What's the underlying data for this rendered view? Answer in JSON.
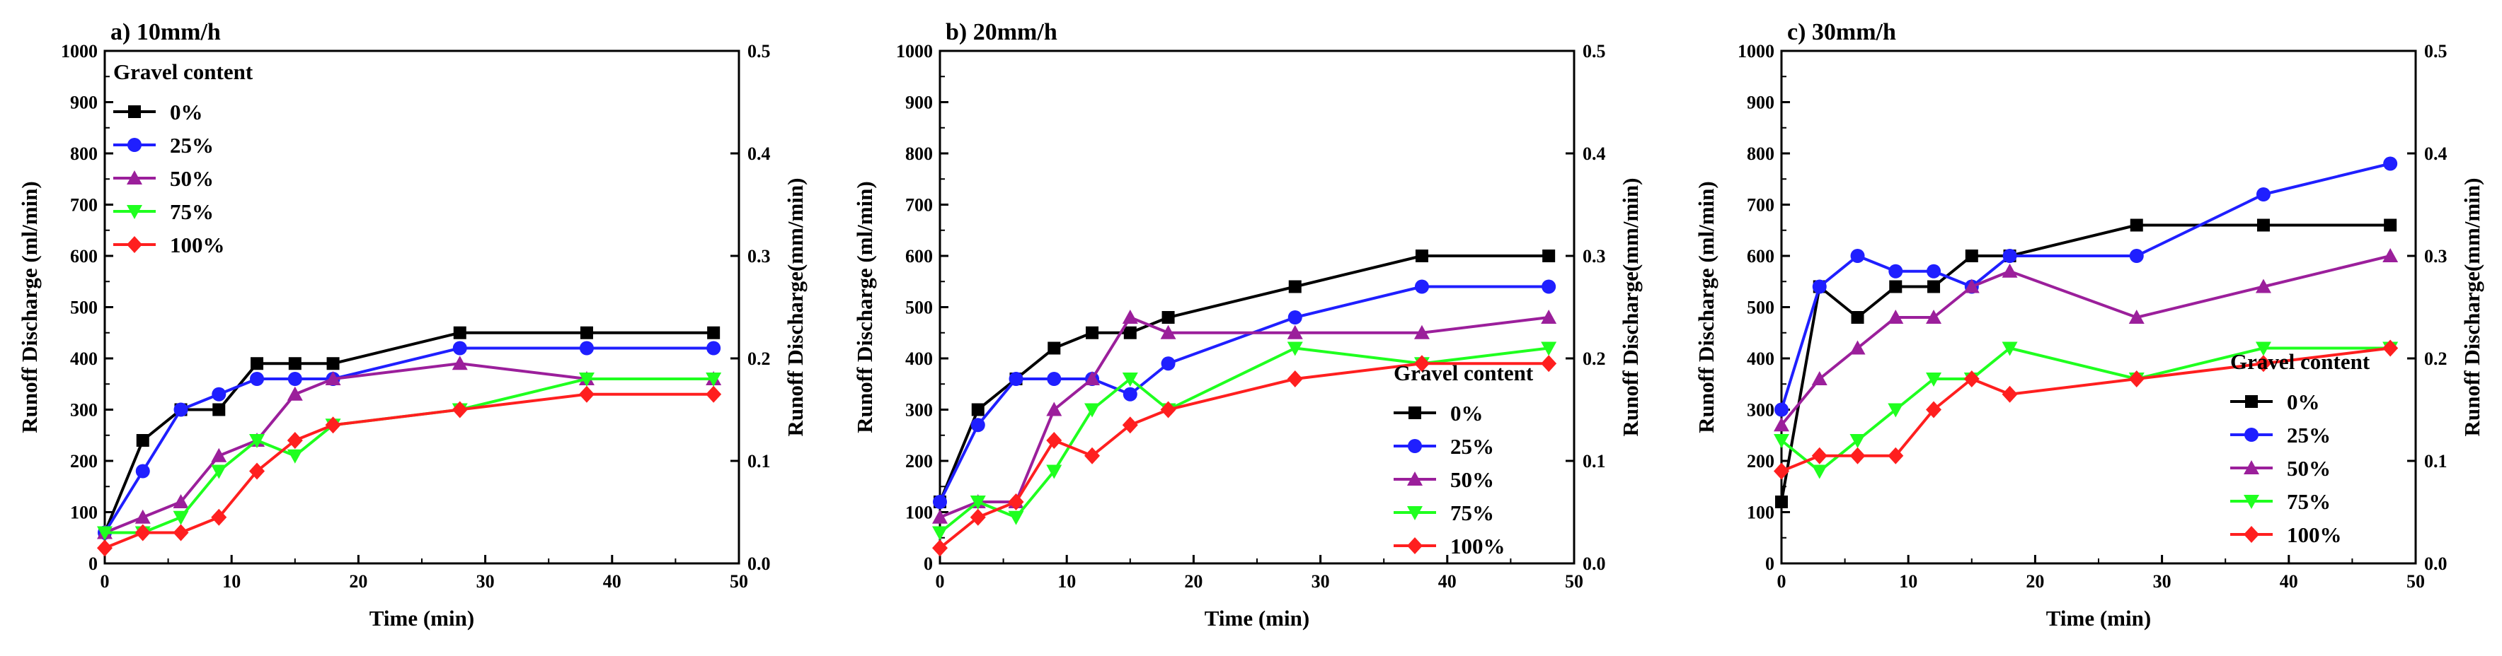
{
  "figure": {
    "legend_title": "Gravel content",
    "left_axis_label": "Runoff Discharge (ml/min)",
    "right_axis_label": "Runoff Discharge(mm/min)",
    "x_axis_label": "Time (min)",
    "series_colors": {
      "0%": "#000000",
      "25%": "#1f1fff",
      "50%": "#9b1f9b",
      "75%": "#1fff1f",
      "100%": "#ff1f1f"
    },
    "series_markers": {
      "0%": "square",
      "25%": "circle",
      "50%": "triangle-up",
      "75%": "triangle-down",
      "100%": "diamond"
    }
  },
  "chart_data": [
    {
      "type": "line",
      "title": "a) 10mm/h",
      "xlabel": "Time (min)",
      "ylabel": "Runoff Discharge (ml/min)",
      "y2label": "Runoff Discharge(mm/min)",
      "xlim": [
        0,
        50
      ],
      "ylim": [
        0,
        1000
      ],
      "y2lim": [
        0,
        0.5
      ],
      "xticks": [
        0,
        10,
        20,
        30,
        40,
        50
      ],
      "yticks": [
        0,
        100,
        200,
        300,
        400,
        500,
        600,
        700,
        800,
        900,
        1000
      ],
      "y2ticks": [
        "0.0",
        "0.1",
        "0.2",
        "0.3",
        "0.4",
        "0.5"
      ],
      "legend_title": "Gravel content",
      "legend_location": "top-left",
      "series": [
        {
          "name": "0%",
          "x": [
            0,
            3,
            6,
            9,
            12,
            15,
            18,
            28,
            38,
            48
          ],
          "y": [
            60,
            240,
            300,
            300,
            390,
            390,
            390,
            450,
            450,
            450
          ]
        },
        {
          "name": "25%",
          "x": [
            0,
            3,
            6,
            9,
            12,
            15,
            18,
            28,
            38,
            48
          ],
          "y": [
            60,
            180,
            300,
            330,
            360,
            360,
            360,
            420,
            420,
            420
          ]
        },
        {
          "name": "50%",
          "x": [
            0,
            3,
            6,
            9,
            12,
            15,
            18,
            28,
            38,
            48
          ],
          "y": [
            60,
            90,
            120,
            210,
            240,
            330,
            360,
            390,
            360,
            360
          ]
        },
        {
          "name": "75%",
          "x": [
            0,
            3,
            6,
            9,
            12,
            15,
            18,
            28,
            38,
            48
          ],
          "y": [
            60,
            60,
            90,
            180,
            240,
            210,
            270,
            300,
            360,
            360
          ]
        },
        {
          "name": "100%",
          "x": [
            0,
            3,
            6,
            9,
            12,
            15,
            18,
            28,
            38,
            48
          ],
          "y": [
            30,
            60,
            60,
            90,
            180,
            240,
            270,
            300,
            330,
            330
          ]
        }
      ]
    },
    {
      "type": "line",
      "title": "b) 20mm/h",
      "xlabel": "Time (min)",
      "ylabel": "Runoff Discharge (ml/min)",
      "y2label": "Runoff Discharge(mm/min)",
      "xlim": [
        0,
        50
      ],
      "ylim": [
        0,
        1000
      ],
      "y2lim": [
        0,
        0.5
      ],
      "xticks": [
        0,
        10,
        20,
        30,
        40,
        50
      ],
      "yticks": [
        0,
        100,
        200,
        300,
        400,
        500,
        600,
        700,
        800,
        900,
        1000
      ],
      "y2ticks": [
        "0.0",
        "0.1",
        "0.2",
        "0.3",
        "0.4",
        "0.5"
      ],
      "legend_title": "Gravel content",
      "legend_location": "bottom-right",
      "series": [
        {
          "name": "0%",
          "x": [
            0,
            3,
            6,
            9,
            12,
            15,
            18,
            28,
            38,
            48
          ],
          "y": [
            120,
            300,
            360,
            420,
            450,
            450,
            480,
            540,
            600,
            600
          ]
        },
        {
          "name": "25%",
          "x": [
            0,
            3,
            6,
            9,
            12,
            15,
            18,
            28,
            38,
            48
          ],
          "y": [
            120,
            270,
            360,
            360,
            360,
            330,
            390,
            480,
            540,
            540
          ]
        },
        {
          "name": "50%",
          "x": [
            0,
            3,
            6,
            9,
            12,
            15,
            18,
            28,
            38,
            48
          ],
          "y": [
            90,
            120,
            120,
            300,
            360,
            480,
            450,
            450,
            450,
            480
          ]
        },
        {
          "name": "75%",
          "x": [
            0,
            3,
            6,
            9,
            12,
            15,
            18,
            28,
            38,
            48
          ],
          "y": [
            60,
            120,
            90,
            180,
            300,
            360,
            300,
            420,
            390,
            420
          ]
        },
        {
          "name": "100%",
          "x": [
            0,
            3,
            6,
            9,
            12,
            15,
            18,
            28,
            38,
            48
          ],
          "y": [
            30,
            90,
            120,
            240,
            210,
            270,
            300,
            360,
            390,
            390
          ]
        }
      ]
    },
    {
      "type": "line",
      "title": "c) 30mm/h",
      "xlabel": "Time (min)",
      "ylabel": "Runoff Discharge (ml/min)",
      "y2label": "Runoff Discharge(mm/min)",
      "xlim": [
        0,
        50
      ],
      "ylim": [
        0,
        1000
      ],
      "y2lim": [
        0,
        0.5
      ],
      "xticks": [
        0,
        10,
        20,
        30,
        40,
        50
      ],
      "yticks": [
        0,
        100,
        200,
        300,
        400,
        500,
        600,
        700,
        800,
        900,
        1000
      ],
      "y2ticks": [
        "0.0",
        "0.1",
        "0.2",
        "0.3",
        "0.4",
        "0.5"
      ],
      "legend_title": "Gravel content",
      "legend_location": "center-right",
      "series": [
        {
          "name": "0%",
          "x": [
            0,
            3,
            6,
            9,
            12,
            15,
            18,
            28,
            38,
            48
          ],
          "y": [
            120,
            540,
            480,
            540,
            540,
            600,
            600,
            660,
            660,
            660
          ]
        },
        {
          "name": "25%",
          "x": [
            0,
            3,
            6,
            9,
            12,
            15,
            18,
            28,
            38,
            48
          ],
          "y": [
            300,
            540,
            600,
            570,
            570,
            540,
            600,
            600,
            720,
            780
          ]
        },
        {
          "name": "50%",
          "x": [
            0,
            3,
            6,
            9,
            12,
            15,
            18,
            28,
            38,
            48
          ],
          "y": [
            270,
            360,
            420,
            480,
            480,
            540,
            570,
            480,
            540,
            600
          ]
        },
        {
          "name": "75%",
          "x": [
            0,
            3,
            6,
            9,
            12,
            15,
            18,
            28,
            38,
            48
          ],
          "y": [
            240,
            180,
            240,
            300,
            360,
            360,
            420,
            360,
            420,
            420
          ]
        },
        {
          "name": "100%",
          "x": [
            0,
            3,
            6,
            9,
            12,
            15,
            18,
            28,
            38,
            48
          ],
          "y": [
            180,
            210,
            210,
            210,
            300,
            360,
            330,
            360,
            390,
            420
          ]
        }
      ]
    }
  ]
}
